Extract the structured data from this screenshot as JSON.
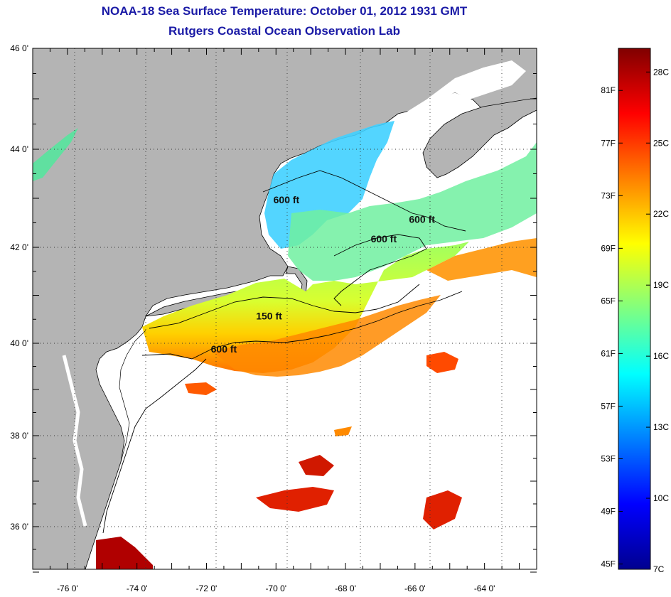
{
  "title_line1": "NOAA-18 Sea Surface Temperature:  October 01, 2012 1931 GMT",
  "title_line2": "Rutgers Coastal Ocean Observation Lab",
  "map": {
    "lon_labels": [
      "-76 0'",
      "-74 0'",
      "-72 0'",
      "-70 0'",
      "-68 0'",
      "-66 0'",
      "-64 0'"
    ],
    "lon_values": [
      -76,
      -74,
      -72,
      -70,
      -68,
      -66,
      -64
    ],
    "lat_labels": [
      "46 0'",
      "44 0'",
      "42 0'",
      "40 0'",
      "38 0'",
      "36 0'"
    ],
    "lat_values": [
      46,
      44,
      42,
      40,
      38,
      36
    ],
    "lon_range": [
      -77,
      -62.5
    ],
    "lat_range": [
      35,
      46
    ],
    "grid": "dotted",
    "land_color": "#b4b4b4",
    "no_data_color": "#ffffff",
    "contour_labels": [
      {
        "text": "600 ft",
        "lon": -69.7,
        "lat": 42.9
      },
      {
        "text": "600 ft",
        "lon": -65.8,
        "lat": 42.5
      },
      {
        "text": "600 ft",
        "lon": -66.9,
        "lat": 42.1
      },
      {
        "text": "150 ft",
        "lon": -70.2,
        "lat": 40.5
      },
      {
        "text": "600 ft",
        "lon": -71.5,
        "lat": 39.8
      }
    ]
  },
  "colorbar": {
    "range_c": [
      7,
      29
    ],
    "fahrenheit_labels": [
      "45F",
      "49F",
      "53F",
      "57F",
      "61F",
      "65F",
      "69F",
      "73F",
      "77F",
      "81F"
    ],
    "fahrenheit_values": [
      45,
      49,
      53,
      57,
      61,
      65,
      69,
      73,
      77,
      81
    ],
    "celsius_labels": [
      "7C",
      "10C",
      "13C",
      "16C",
      "19C",
      "22C",
      "25C",
      "28C"
    ],
    "celsius_values": [
      7,
      10,
      13,
      16,
      19,
      22,
      25,
      28
    ],
    "colors": [
      "#00008f",
      "#0000ff",
      "#0080ff",
      "#00ffff",
      "#80ff80",
      "#ffff00",
      "#ff8000",
      "#ff0000",
      "#800000"
    ]
  }
}
